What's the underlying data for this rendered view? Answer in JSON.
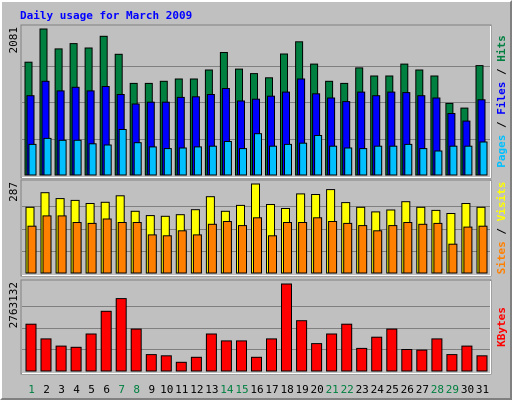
{
  "title": "Daily usage for March 2009",
  "colors": {
    "hits": "#008040",
    "files": "#0000ff",
    "pages": "#00c0ff",
    "visits": "#ffff00",
    "sites": "#ff8000",
    "kbytes": "#ff0000",
    "weekend_label": "#008040",
    "weekday_label": "#000000",
    "title": "#0000ff"
  },
  "chart_data": [
    {
      "type": "bar",
      "panel": "hits-files-pages",
      "ymax_label": "2081",
      "right_labels": [
        "Pages",
        "Files",
        "Hits"
      ],
      "categories": [
        "1",
        "2",
        "3",
        "4",
        "5",
        "6",
        "7",
        "8",
        "9",
        "10",
        "11",
        "12",
        "13",
        "14",
        "15",
        "16",
        "17",
        "18",
        "19",
        "20",
        "21",
        "22",
        "23",
        "24",
        "25",
        "26",
        "27",
        "28",
        "29",
        "30",
        "31"
      ],
      "weekend": [
        true,
        false,
        false,
        false,
        false,
        false,
        true,
        true,
        false,
        false,
        false,
        false,
        false,
        true,
        true,
        false,
        false,
        false,
        false,
        false,
        true,
        true,
        false,
        false,
        false,
        false,
        false,
        true,
        true,
        false,
        false
      ],
      "ylim": [
        0,
        2081
      ],
      "series": [
        {
          "name": "Hits",
          "values": [
            1608,
            2081,
            1797,
            1873,
            1810,
            1977,
            1721,
            1305,
            1305,
            1335,
            1369,
            1369,
            1496,
            1746,
            1509,
            1445,
            1386,
            1725,
            1899,
            1581,
            1335,
            1305,
            1526,
            1411,
            1411,
            1581,
            1496,
            1411,
            1021,
            953,
            1559
          ]
        },
        {
          "name": "Files",
          "values": [
            1131,
            1335,
            1199,
            1250,
            1199,
            1262,
            1148,
            1012,
            1038,
            1038,
            1106,
            1114,
            1148,
            1233,
            1055,
            1080,
            1123,
            1182,
            1369,
            1157,
            1097,
            1046,
            1182,
            1131,
            1182,
            1174,
            1131,
            1097,
            877,
            768,
            1072
          ]
        },
        {
          "name": "Pages",
          "values": [
            436,
            521,
            495,
            495,
            444,
            427,
            648,
            461,
            401,
            376,
            385,
            401,
            410,
            478,
            376,
            589,
            410,
            436,
            453,
            563,
            410,
            385,
            376,
            410,
            410,
            436,
            376,
            342,
            410,
            410,
            470
          ]
        }
      ]
    },
    {
      "type": "bar",
      "panel": "sites-visits",
      "ymax_label": "287",
      "right_labels": [
        "Sites",
        "Visits"
      ],
      "categories": [
        "1",
        "2",
        "3",
        "4",
        "5",
        "6",
        "7",
        "8",
        "9",
        "10",
        "11",
        "12",
        "13",
        "14",
        "15",
        "16",
        "17",
        "18",
        "19",
        "20",
        "21",
        "22",
        "23",
        "24",
        "25",
        "26",
        "27",
        "28",
        "29",
        "30",
        "31"
      ],
      "ylim": [
        0,
        287
      ],
      "series": [
        {
          "name": "Visits",
          "values": [
            212,
            259,
            240,
            234,
            224,
            228,
            249,
            199,
            185,
            183,
            188,
            204,
            246,
            199,
            218,
            287,
            221,
            208,
            255,
            253,
            269,
            227,
            212,
            197,
            203,
            230,
            212,
            202,
            192,
            224,
            212
          ]
        },
        {
          "name": "Sites",
          "values": [
            151,
            184,
            184,
            163,
            160,
            174,
            163,
            163,
            123,
            120,
            136,
            123,
            157,
            166,
            153,
            178,
            120,
            163,
            163,
            178,
            166,
            160,
            153,
            136,
            153,
            163,
            157,
            160,
            93,
            148,
            151
          ]
        }
      ]
    },
    {
      "type": "bar",
      "panel": "kbytes",
      "ymax_label": "2763132",
      "right_labels": [
        "KBytes"
      ],
      "categories": [
        "1",
        "2",
        "3",
        "4",
        "5",
        "6",
        "7",
        "8",
        "9",
        "10",
        "11",
        "12",
        "13",
        "14",
        "15",
        "16",
        "17",
        "18",
        "19",
        "20",
        "21",
        "22",
        "23",
        "24",
        "25",
        "26",
        "27",
        "28",
        "29",
        "30",
        "31"
      ],
      "ylim": [
        0,
        2763132
      ],
      "series": [
        {
          "name": "KBytes",
          "values": [
            1485000,
            1021000,
            791000,
            752000,
            1176000,
            1897000,
            2301000,
            1331000,
            522000,
            484000,
            276000,
            436000,
            1176000,
            957000,
            957000,
            436000,
            1021000,
            2763132,
            1598000,
            869000,
            1176000,
            1485000,
            717000,
            1072000,
            1331000,
            684000,
            665000,
            1021000,
            522000,
            791000,
            484000
          ]
        }
      ]
    }
  ]
}
